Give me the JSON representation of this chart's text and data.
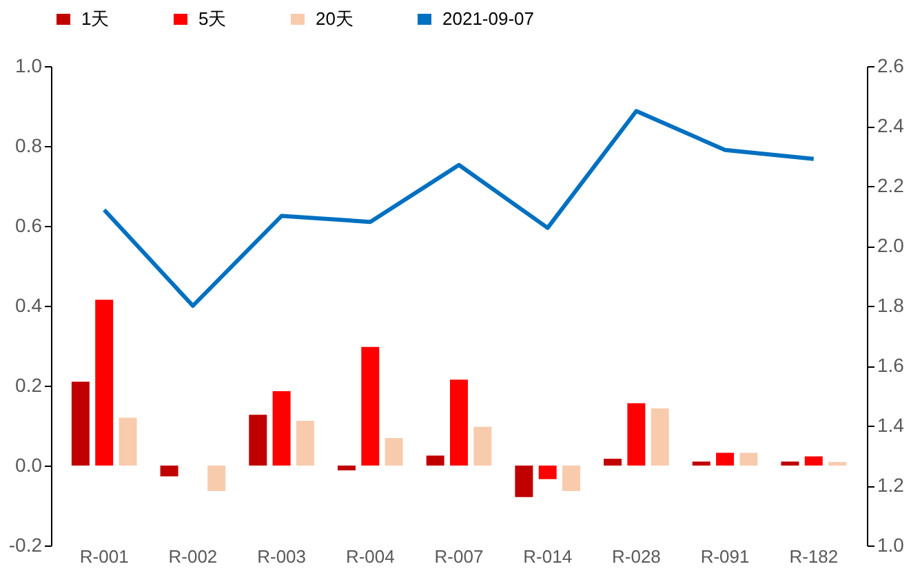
{
  "chart_data": {
    "type": "bar",
    "categories": [
      "R-001",
      "R-002",
      "R-003",
      "R-004",
      "R-007",
      "R-014",
      "R-028",
      "R-091",
      "R-182"
    ],
    "series": [
      {
        "name": "1天",
        "color": "#c00000",
        "values": [
          0.21,
          -0.027,
          0.127,
          -0.012,
          0.025,
          -0.079,
          0.017,
          0.01,
          0.01
        ]
      },
      {
        "name": "5天",
        "color": "#ff0000",
        "values": [
          0.415,
          0,
          0.186,
          0.297,
          0.215,
          -0.034,
          0.156,
          0.032,
          0.023
        ]
      },
      {
        "name": "20天",
        "color": "#f8cbad",
        "values": [
          0.12,
          -0.064,
          0.112,
          0.069,
          0.097,
          -0.064,
          0.143,
          0.032,
          0.009
        ]
      },
      {
        "name": "2021-09-07",
        "color": "#0070c0",
        "type": "line",
        "axis": "y2",
        "values": [
          2.12,
          1.8,
          2.1,
          2.08,
          2.27,
          2.06,
          2.45,
          2.32,
          2.29
        ]
      }
    ],
    "ylim": [
      -0.2,
      1.0
    ],
    "yticks": [
      -0.2,
      {
        "value": 0,
        "label": "0.0"
      },
      0.2,
      0.4,
      0.6,
      0.8,
      {
        "value": 1,
        "label": "1.0"
      }
    ],
    "y2lim": [
      1.0,
      2.6
    ],
    "y2ticks": [
      {
        "value": 1,
        "label": "1.0"
      },
      1.2,
      1.4,
      1.6,
      1.8,
      {
        "value": 2,
        "label": "2.0"
      },
      2.2,
      2.4,
      2.6
    ],
    "grid": false,
    "legend": "top",
    "marker": "none",
    "line_style": "solid"
  }
}
